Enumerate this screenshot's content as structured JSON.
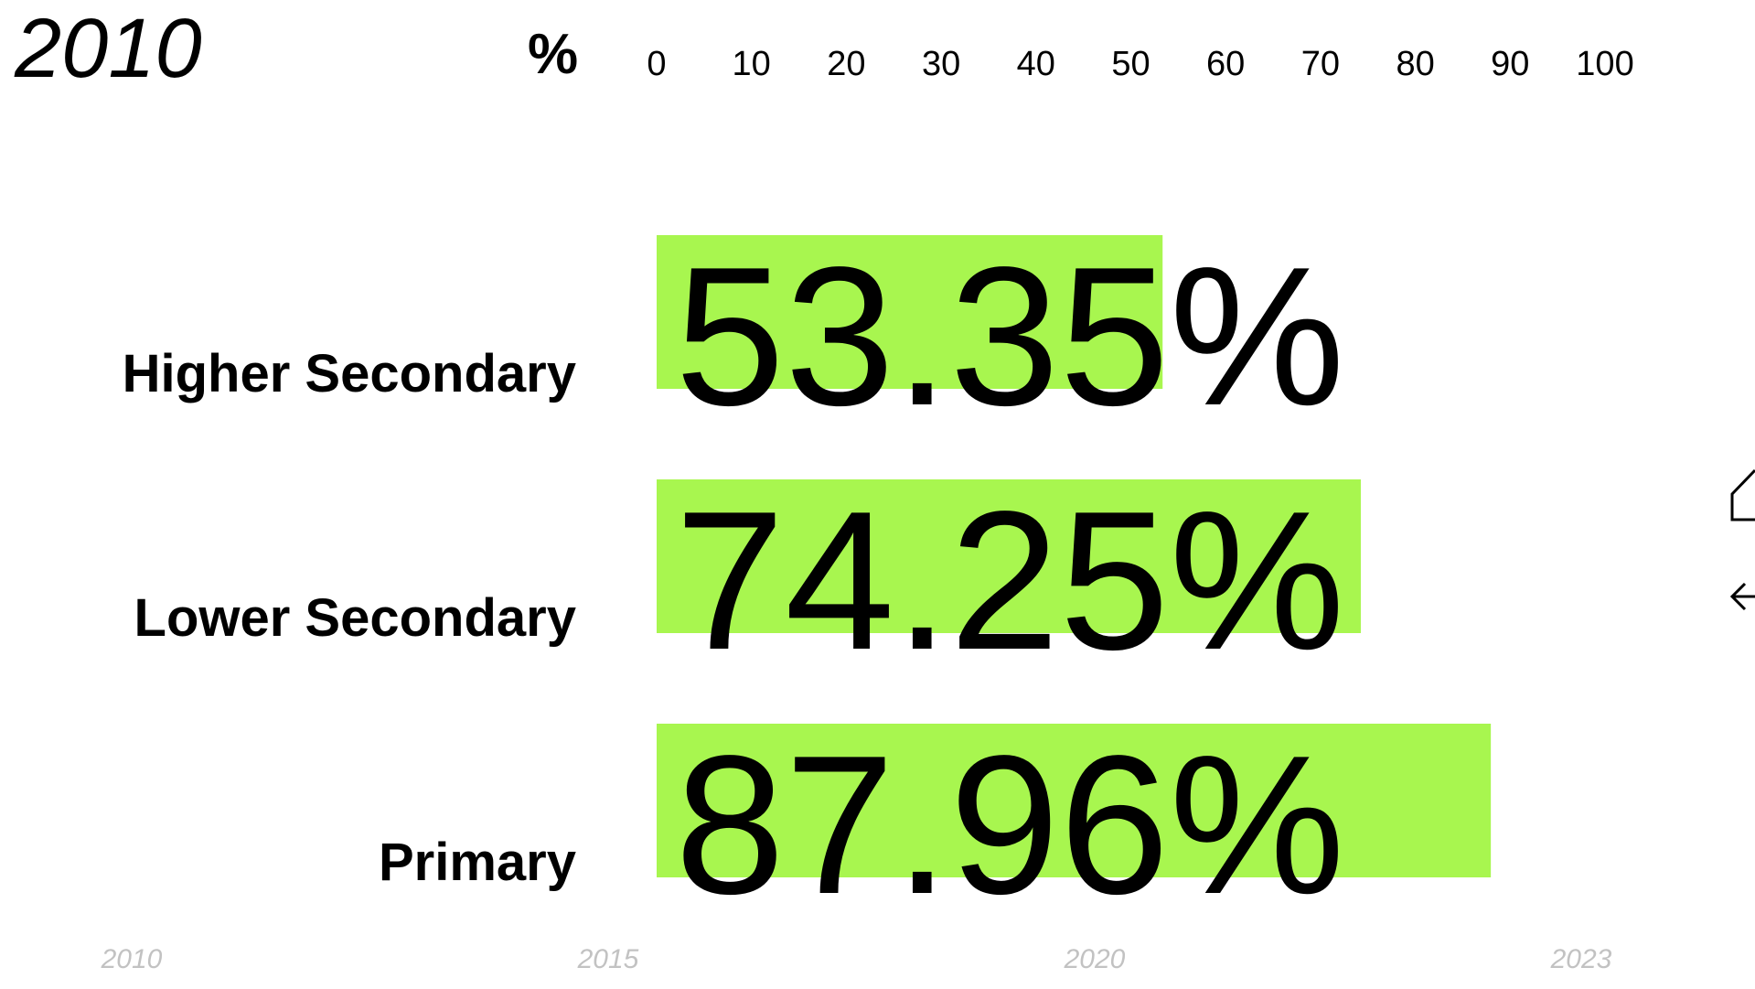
{
  "chart_data": {
    "type": "bar",
    "orientation": "horizontal",
    "title": "2010",
    "unit_label": "%",
    "categories": [
      "Higher Secondary",
      "Lower Secondary",
      "Primary"
    ],
    "values": [
      53.35,
      74.25,
      87.96
    ],
    "value_labels": [
      "53.35%",
      "74.25%",
      "87.96%"
    ],
    "color": "#a8f64f",
    "xlim": [
      0,
      100
    ],
    "xticks": [
      0,
      10,
      20,
      30,
      40,
      50,
      60,
      70,
      80,
      90,
      100
    ],
    "timeline": [
      "2010",
      "2015",
      "2020",
      "2023"
    ]
  }
}
